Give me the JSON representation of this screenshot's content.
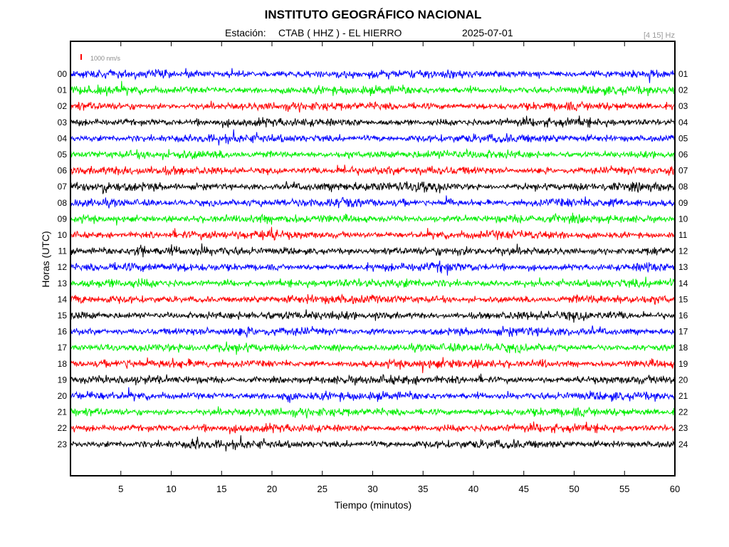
{
  "header": {
    "title": "INSTITUTO GEOGRÁFICO NACIONAL",
    "station_prefix": "Estación:",
    "station": "CTAB ( HHZ ) - EL HIERRO",
    "date": "2025-07-01",
    "filter": "[4 15] Hz",
    "scale": "1000 nm/s"
  },
  "chart_data": {
    "type": "line",
    "subtype": "helicorder",
    "xlabel": "Tiempo (minutos)",
    "ylabel": "Horas (UTC)",
    "xlim": [
      0,
      60
    ],
    "xticks": [
      5,
      10,
      15,
      20,
      25,
      30,
      35,
      40,
      45,
      50,
      55,
      60
    ],
    "left_labels": [
      "00",
      "01",
      "02",
      "03",
      "04",
      "05",
      "06",
      "07",
      "08",
      "09",
      "10",
      "11",
      "12",
      "13",
      "14",
      "15",
      "16",
      "17",
      "18",
      "19",
      "20",
      "21",
      "22",
      "23"
    ],
    "right_labels": [
      "01",
      "02",
      "03",
      "04",
      "05",
      "06",
      "07",
      "08",
      "09",
      "10",
      "11",
      "12",
      "13",
      "14",
      "15",
      "16",
      "17",
      "18",
      "19",
      "20",
      "21",
      "22",
      "23",
      "24"
    ],
    "trace_colors": [
      "#0000ff",
      "#00ee00",
      "#ff0000",
      "#000000"
    ],
    "scale_bar_color": "#ff0000",
    "events": [
      {
        "hour": 6,
        "minute": 27.2,
        "amplitude": 2.2
      },
      {
        "hour": 7,
        "minute": 3.3,
        "amplitude": 1.9
      },
      {
        "hour": 7,
        "minute": 35.0,
        "amplitude": 2.1
      },
      {
        "hour": 7,
        "minute": 36.5,
        "amplitude": 1.6
      },
      {
        "hour": 8,
        "minute": 27.3,
        "amplitude": 1.8
      },
      {
        "hour": 8,
        "minute": 37.6,
        "amplitude": 2.0
      },
      {
        "hour": 10,
        "minute": 20.1,
        "amplitude": 1.6
      },
      {
        "hour": 10,
        "minute": 19.0,
        "amplitude": 1.5
      },
      {
        "hour": 11,
        "minute": 6.9,
        "amplitude": 2.4
      },
      {
        "hour": 11,
        "minute": 57.9,
        "amplitude": 1.8
      },
      {
        "hour": 12,
        "minute": 37.1,
        "amplitude": 1.5
      },
      {
        "hour": 12,
        "minute": 57.1,
        "amplitude": 1.7
      },
      {
        "hour": 18,
        "minute": 47.0,
        "amplitude": 1.8
      },
      {
        "hour": 18,
        "minute": 5.8,
        "amplitude": 1.5
      },
      {
        "hour": 20,
        "minute": 21.4,
        "amplitude": 1.9
      },
      {
        "hour": 23,
        "minute": 12.5,
        "amplitude": 1.7
      }
    ]
  }
}
